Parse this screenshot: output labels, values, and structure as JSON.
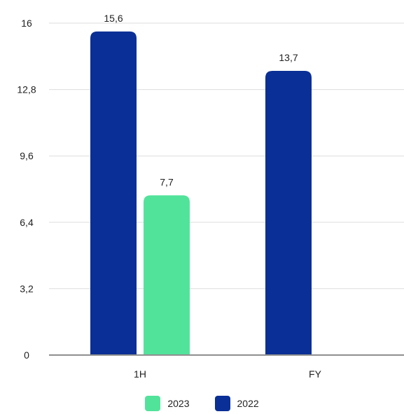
{
  "chart_data": {
    "type": "bar",
    "categories": [
      "1H",
      "FY"
    ],
    "series": [
      {
        "name": "2022",
        "values": [
          15.6,
          13.7
        ],
        "labels": [
          "15,6",
          "13,7"
        ],
        "color": "#0a2f96"
      },
      {
        "name": "2023",
        "values": [
          7.7,
          null
        ],
        "labels": [
          "7,7",
          ""
        ],
        "color": "#52e39b"
      }
    ],
    "y_ticks": [
      0,
      3.2,
      6.4,
      9.6,
      12.8,
      16
    ],
    "y_tick_labels": [
      "0",
      "3,2",
      "6,4",
      "9,6",
      "12,8",
      "16"
    ],
    "ylim": [
      0,
      16
    ],
    "grid": true,
    "legend_position": "bottom",
    "legend": [
      {
        "name": "2023",
        "color": "#52e39b"
      },
      {
        "name": "2022",
        "color": "#0a2f96"
      }
    ]
  }
}
